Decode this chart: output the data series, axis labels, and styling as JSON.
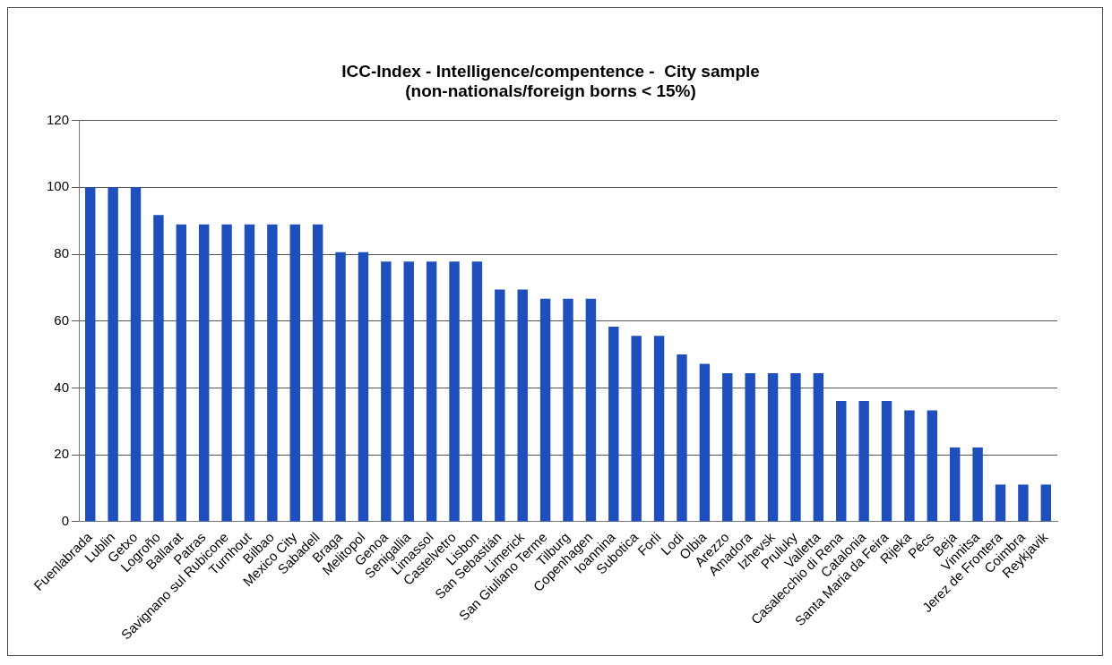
{
  "chart_data": {
    "type": "bar",
    "title": "ICC-Index - Intelligence/compentence -  City sample",
    "subtitle": "(non-nationals/foreign borns < 15%)",
    "categories": [
      "Fuenlabrada",
      "Lublin",
      "Getxo",
      "Logroño",
      "Ballarat",
      "Patras",
      "Savignano sul Rubicone",
      "Turnhout",
      "Bilbao",
      "Mexico City",
      "Sabadell",
      "Braga",
      "Melitopol",
      "Genoa",
      "Senigallia",
      "Limassol",
      "Castelvetro",
      "Lisbon",
      "San Sebastián",
      "Limerick",
      "San Giuliano Terme",
      "Tilburg",
      "Copenhagen",
      "Ioannina",
      "Subotica",
      "Forli",
      "Lodi",
      "Olbia",
      "Arezzo",
      "Amadora",
      "Izhevsk",
      "Pruluky",
      "Valletta",
      "Casalecchio di Rena",
      "Catalonia",
      "Santa Maria da Feira",
      "Rijeka",
      "Pécs",
      "Beja",
      "Vinnitsa",
      "Jerez de Frontera",
      "Coimbra",
      "Reykjavik"
    ],
    "values": [
      100,
      100,
      100,
      91.7,
      88.9,
      88.9,
      88.9,
      88.9,
      88.9,
      88.9,
      88.9,
      80.6,
      80.6,
      77.8,
      77.8,
      77.8,
      77.8,
      77.8,
      69.4,
      69.4,
      66.7,
      66.7,
      66.7,
      58.3,
      55.6,
      55.6,
      50,
      47.2,
      44.4,
      44.4,
      44.4,
      44.4,
      44.4,
      36.1,
      36.1,
      36.1,
      33.3,
      33.3,
      22.2,
      22.2,
      11.1,
      11.1,
      11.1
    ],
    "color": "#1f4fbd",
    "ylim": [
      0,
      120
    ],
    "yticks": [
      0,
      20,
      40,
      60,
      80,
      100,
      120
    ],
    "grid": "y",
    "legend": false
  }
}
